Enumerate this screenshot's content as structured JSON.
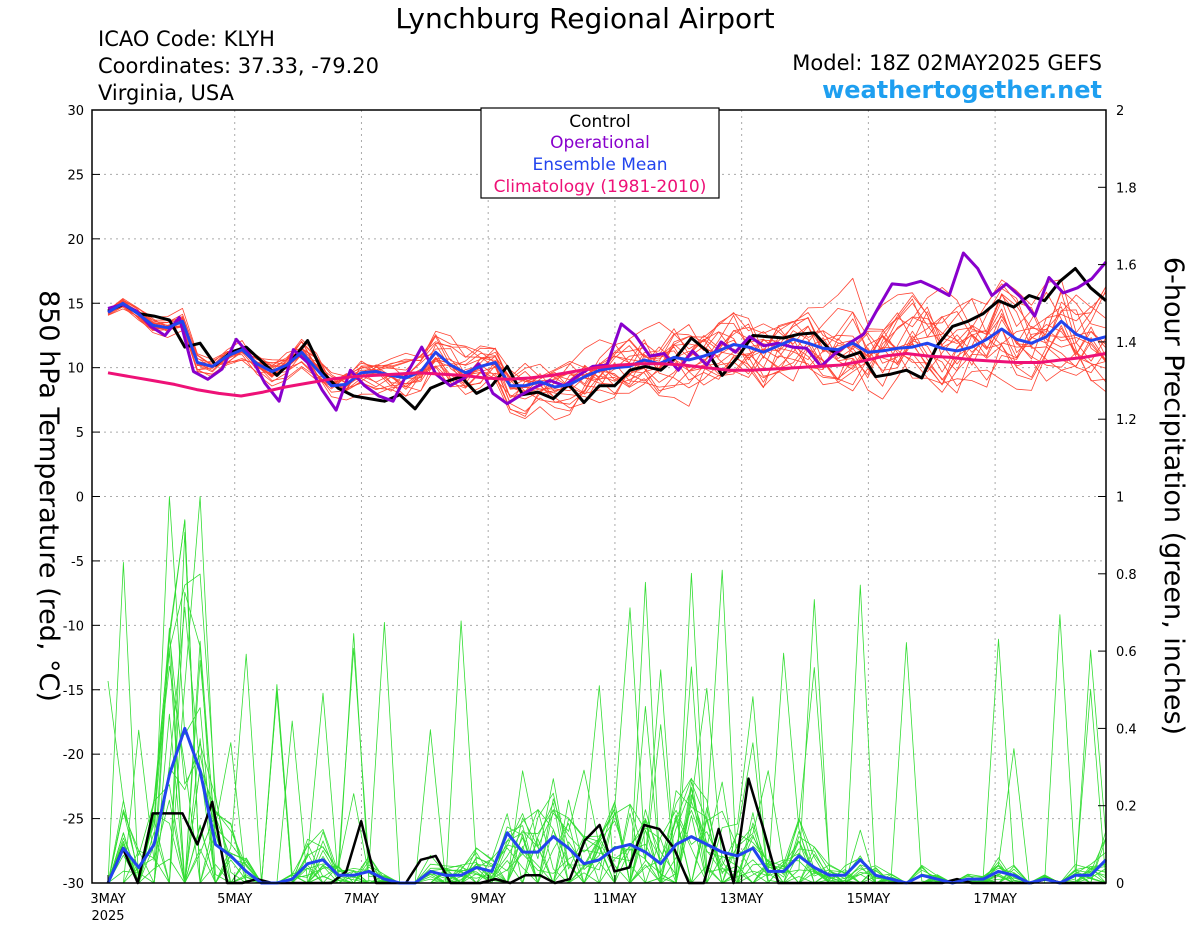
{
  "header": {
    "title": "Lynchburg Regional Airport",
    "icao": "ICAO Code: KLYH",
    "coordinates": "Coordinates: 37.33, -79.20",
    "location": "Virginia, USA",
    "model": "Model: 18Z 02MAY2025 GEFS",
    "site": "weathertogether.net"
  },
  "colors": {
    "members_temp": "#ff3b2f",
    "members_precip": "#33dd33",
    "control": "#000000",
    "operational": "#8800cc",
    "ensemble_mean": "#2244ee",
    "climatology": "#ee1177",
    "site": "#1e9ff0"
  },
  "chart_data": {
    "type": "line",
    "title": "Lynchburg Regional Airport",
    "ylabel_left": "850 hPa Temperature (red, °C)",
    "ylabel_right": "6-hour Precipitation (green, inches)",
    "ylim_left": [
      -30,
      30
    ],
    "ylim_right": [
      0,
      2
    ],
    "yticks_left": [
      "30",
      "25",
      "20",
      "15",
      "10",
      "5",
      "0",
      "-5",
      "-10",
      "-15",
      "-20",
      "-25",
      "-30"
    ],
    "yticks_right": [
      "2",
      "1.8",
      "1.6",
      "1.4",
      "1.2",
      "1",
      "0.8",
      "0.6",
      "0.4",
      "0.2",
      "0"
    ],
    "xlim_days": [
      0,
      15.75
    ],
    "x_tick_labels": [
      "3MAY",
      "5MAY",
      "7MAY",
      "9MAY",
      "11MAY",
      "13MAY",
      "15MAY",
      "17MAY"
    ],
    "x_tick_year": "2025",
    "grid": true,
    "legend": {
      "position": "top-center",
      "entries": [
        "Control",
        "Operational",
        "Ensemble Mean",
        "Climatology (1981-2010)"
      ]
    },
    "temperature_series": [
      {
        "name": "Control",
        "values": [
          14.4,
          14.9,
          14.2,
          14.0,
          13.7,
          11.6,
          11.9,
          10.2,
          11.2,
          11.6,
          10.5,
          9.4,
          10.6,
          12.1,
          9.6,
          8.4,
          7.8,
          7.6,
          7.4,
          7.9,
          6.8,
          8.4,
          8.9,
          9.3,
          8.0,
          8.6,
          10.1,
          7.9,
          8.1,
          7.6,
          8.7,
          7.3,
          8.6,
          8.6,
          9.8,
          10.1,
          9.8,
          10.8,
          12.3,
          11.3,
          9.4,
          10.8,
          12.5,
          12.4,
          12.3,
          12.6,
          12.7,
          11.4,
          10.8,
          11.2,
          9.3,
          9.5,
          9.8,
          9.2,
          11.7,
          13.2,
          13.6,
          14.2,
          15.2,
          14.7,
          15.6,
          15.2,
          16.7,
          17.7,
          16.2,
          15.2
        ]
      },
      {
        "name": "Operational",
        "values": [
          14.6,
          14.9,
          14.4,
          13.2,
          12.5,
          13.9,
          9.7,
          9.1,
          9.9,
          12.2,
          10.9,
          8.8,
          7.4,
          11.4,
          10.4,
          8.3,
          6.7,
          9.8,
          8.6,
          7.8,
          7.4,
          9.6,
          11.6,
          9.5,
          8.6,
          9.2,
          10.3,
          8.0,
          7.2,
          7.9,
          8.5,
          9.0,
          8.6,
          9.4,
          10.1,
          10.2,
          13.4,
          12.5,
          10.9,
          11.1,
          9.8,
          11.3,
          10.2,
          12.0,
          11.2,
          12.4,
          11.7,
          11.9,
          11.6,
          11.5,
          10.1,
          11.1,
          11.9,
          12.6,
          14.6,
          16.5,
          16.4,
          16.7,
          16.2,
          15.6,
          18.9,
          17.7,
          15.6,
          16.5,
          15.5,
          14.0,
          17.0,
          15.8,
          16.2,
          16.9,
          18.2
        ]
      },
      {
        "name": "Ensemble Mean",
        "values": [
          14.3,
          15.0,
          14.2,
          13.3,
          13.1,
          13.6,
          10.4,
          10.1,
          10.9,
          11.4,
          10.3,
          9.7,
          10.2,
          11.2,
          9.9,
          8.6,
          8.7,
          9.6,
          9.7,
          9.4,
          9.2,
          9.7,
          11.2,
          10.2,
          9.6,
          10.1,
          10.4,
          8.6,
          8.6,
          8.9,
          8.5,
          8.7,
          9.3,
          9.8,
          10.0,
          10.1,
          10.6,
          10.3,
          10.8,
          10.6,
          10.9,
          11.3,
          11.8,
          11.6,
          11.2,
          11.7,
          12.2,
          11.9,
          11.5,
          11.4,
          11.9,
          11.2,
          11.3,
          11.5,
          11.6,
          11.9,
          11.5,
          11.3,
          11.6,
          12.2,
          13.0,
          12.2,
          11.9,
          12.4,
          13.6,
          12.6,
          12.1,
          12.4
        ]
      },
      {
        "name": "Climatology (1981-2010)",
        "values": [
          9.6,
          9.3,
          9.0,
          8.7,
          8.3,
          8.0,
          7.8,
          8.1,
          8.5,
          8.8,
          9.1,
          9.3,
          9.4,
          9.5,
          9.6,
          9.5,
          9.4,
          9.2,
          9.1,
          9.2,
          9.4,
          9.7,
          10.0,
          10.2,
          10.3,
          10.3,
          10.2,
          10.0,
          9.8,
          9.8,
          9.9,
          10.0,
          10.1,
          10.2,
          10.5,
          10.9,
          11.1,
          10.9,
          10.8,
          10.6,
          10.5,
          10.4,
          10.4,
          10.6,
          10.8,
          11.1
        ]
      }
    ],
    "precip_series": [
      {
        "name": "Control",
        "values": [
          0,
          0.09,
          0,
          0.18,
          0.18,
          0.18,
          0.1,
          0.21,
          0,
          0,
          0.01,
          0,
          0,
          0,
          0,
          0,
          0.03,
          0.16,
          0,
          0,
          0,
          0.06,
          0.07,
          0,
          0,
          0,
          0.01,
          0,
          0.02,
          0.02,
          0,
          0.01,
          0.11,
          0.15,
          0.03,
          0.04,
          0.15,
          0.14,
          0.09,
          0,
          0,
          0.14,
          0,
          0.27,
          0.14,
          0,
          0,
          0,
          0,
          0,
          0,
          0,
          0,
          0,
          0,
          0,
          0,
          0.01,
          0,
          0,
          0,
          0,
          0,
          0.01,
          0,
          0,
          0,
          0
        ]
      },
      {
        "name": "Ensemble Mean",
        "values": [
          0,
          0.09,
          0.04,
          0.1,
          0.28,
          0.4,
          0.29,
          0.1,
          0.07,
          0.03,
          0,
          0,
          0.01,
          0.05,
          0.06,
          0.02,
          0.02,
          0.03,
          0.01,
          0,
          0,
          0.03,
          0.02,
          0.02,
          0.04,
          0.03,
          0.13,
          0.08,
          0.08,
          0.12,
          0.09,
          0.05,
          0.06,
          0.09,
          0.1,
          0.08,
          0.05,
          0.1,
          0.12,
          0.1,
          0.08,
          0.07,
          0.09,
          0.03,
          0.03,
          0.07,
          0.04,
          0.02,
          0.02,
          0.06,
          0.02,
          0.01,
          0,
          0.02,
          0.01,
          0,
          0.01,
          0.01,
          0.03,
          0.02,
          0,
          0.01,
          0,
          0.02,
          0.02,
          0.06
        ]
      }
    ]
  }
}
